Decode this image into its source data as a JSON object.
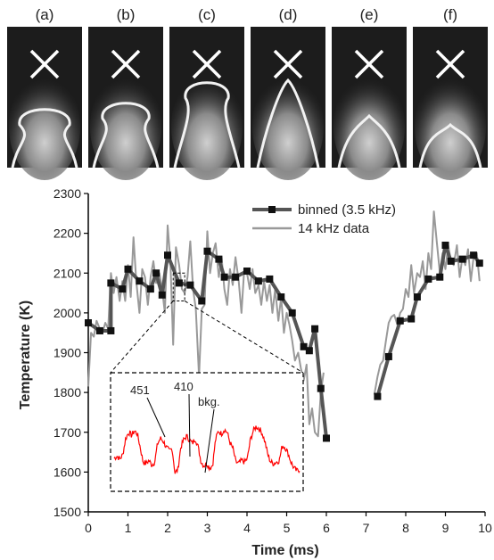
{
  "panels": {
    "labels": [
      "(a)",
      "(b)",
      "(c)",
      "(d)",
      "(e)",
      "(f)"
    ]
  },
  "chart_data": {
    "type": "line",
    "xlabel": "Time  (ms)",
    "ylabel": "Temperature  (K)",
    "xlim": [
      0,
      10
    ],
    "ylim": [
      1500,
      2300
    ],
    "xticks": [
      0,
      1,
      2,
      3,
      4,
      5,
      6,
      7,
      8,
      9,
      10
    ],
    "yticks": [
      1500,
      1600,
      1700,
      1800,
      1900,
      2000,
      2100,
      2200,
      2300
    ],
    "grid": false,
    "legend_position": "top-right",
    "series": [
      {
        "name": "binned (3.5 kHz)",
        "color": "#555555",
        "marker": "square",
        "segments": [
          [
            [
              0.0,
              1975
            ],
            [
              0.29,
              1955
            ],
            [
              0.57,
              1955
            ],
            [
              0.57,
              2075
            ],
            [
              0.86,
              2060
            ],
            [
              1.0,
              2110
            ],
            [
              1.29,
              2080
            ],
            [
              1.57,
              2060
            ],
            [
              1.71,
              2100
            ],
            [
              1.86,
              2045
            ],
            [
              2.0,
              2145
            ],
            [
              2.29,
              2075
            ],
            [
              2.57,
              2070
            ],
            [
              2.86,
              2030
            ],
            [
              3.0,
              2155
            ],
            [
              3.29,
              2135
            ],
            [
              3.43,
              2090
            ],
            [
              3.71,
              2090
            ],
            [
              4.0,
              2105
            ],
            [
              4.29,
              2080
            ],
            [
              4.57,
              2085
            ],
            [
              4.86,
              2040
            ],
            [
              5.14,
              2000
            ],
            [
              5.43,
              1915
            ],
            [
              5.57,
              1905
            ],
            [
              5.71,
              1960
            ],
            [
              5.86,
              1810
            ],
            [
              6.0,
              1685
            ]
          ],
          [
            [
              7.29,
              1790
            ],
            [
              7.57,
              1890
            ],
            [
              7.86,
              1980
            ],
            [
              8.14,
              1985
            ],
            [
              8.29,
              2040
            ],
            [
              8.57,
              2085
            ],
            [
              8.86,
              2090
            ],
            [
              9.0,
              2170
            ],
            [
              9.14,
              2130
            ],
            [
              9.43,
              2135
            ],
            [
              9.71,
              2145
            ],
            [
              9.86,
              2125
            ]
          ]
        ]
      },
      {
        "name": "14 kHz data",
        "color": "#999999",
        "marker": "none",
        "segments": [
          [
            [
              0.0,
              1815
            ],
            [
              0.07,
              1950
            ],
            [
              0.14,
              1940
            ],
            [
              0.21,
              1980
            ],
            [
              0.29,
              1960
            ],
            [
              0.36,
              1950
            ],
            [
              0.43,
              1975
            ],
            [
              0.5,
              1960
            ],
            [
              0.57,
              2100
            ],
            [
              0.64,
              2050
            ],
            [
              0.71,
              2090
            ],
            [
              0.79,
              2030
            ],
            [
              0.86,
              2080
            ],
            [
              0.93,
              2030
            ],
            [
              1.0,
              2120
            ],
            [
              1.07,
              2040
            ],
            [
              1.14,
              2190
            ],
            [
              1.21,
              2080
            ],
            [
              1.29,
              2000
            ],
            [
              1.36,
              2110
            ],
            [
              1.43,
              2090
            ],
            [
              1.5,
              2020
            ],
            [
              1.57,
              2090
            ],
            [
              1.64,
              2130
            ],
            [
              1.71,
              2075
            ],
            [
              1.79,
              2100
            ],
            [
              1.86,
              2060
            ],
            [
              1.93,
              2000
            ],
            [
              2.0,
              2220
            ],
            [
              2.07,
              2130
            ],
            [
              2.14,
              1920
            ],
            [
              2.21,
              2165
            ],
            [
              2.29,
              2120
            ],
            [
              2.36,
              2060
            ],
            [
              2.43,
              2050
            ],
            [
              2.5,
              2090
            ],
            [
              2.57,
              2180
            ],
            [
              2.64,
              2060
            ],
            [
              2.71,
              2010
            ],
            [
              2.79,
              1840
            ],
            [
              2.86,
              2010
            ],
            [
              2.93,
              2020
            ],
            [
              3.0,
              2205
            ],
            [
              3.07,
              2100
            ],
            [
              3.14,
              2150
            ],
            [
              3.21,
              2175
            ],
            [
              3.29,
              2090
            ],
            [
              3.36,
              2140
            ],
            [
              3.43,
              2060
            ],
            [
              3.5,
              2020
            ],
            [
              3.57,
              2110
            ],
            [
              3.64,
              2070
            ],
            [
              3.71,
              2140
            ],
            [
              3.79,
              2080
            ],
            [
              3.86,
              2000
            ],
            [
              3.93,
              2110
            ],
            [
              4.0,
              2100
            ],
            [
              4.07,
              2060
            ],
            [
              4.14,
              2110
            ],
            [
              4.21,
              2050
            ],
            [
              4.29,
              2070
            ],
            [
              4.36,
              2020
            ],
            [
              4.43,
              2080
            ],
            [
              4.5,
              2030
            ],
            [
              4.57,
              2070
            ],
            [
              4.64,
              2000
            ],
            [
              4.71,
              2060
            ],
            [
              4.79,
              1980
            ],
            [
              4.86,
              2040
            ],
            [
              4.93,
              1950
            ],
            [
              5.0,
              2000
            ],
            [
              5.07,
              1970
            ],
            [
              5.14,
              1930
            ],
            [
              5.21,
              1880
            ],
            [
              5.29,
              1900
            ],
            [
              5.36,
              1860
            ],
            [
              5.43,
              1830
            ],
            [
              5.5,
              1870
            ],
            [
              5.57,
              1720
            ],
            [
              5.64,
              1760
            ],
            [
              5.71,
              1700
            ],
            [
              5.79,
              1690
            ],
            [
              5.86,
              1800
            ],
            [
              5.93,
              1850
            ]
          ],
          [
            [
              7.21,
              1795
            ],
            [
              7.29,
              1840
            ],
            [
              7.36,
              1870
            ],
            [
              7.43,
              1880
            ],
            [
              7.5,
              1930
            ],
            [
              7.57,
              1975
            ],
            [
              7.64,
              1990
            ],
            [
              7.71,
              1995
            ],
            [
              7.79,
              1970
            ],
            [
              7.86,
              2000
            ],
            [
              7.93,
              2010
            ],
            [
              8.0,
              2060
            ],
            [
              8.07,
              2040
            ],
            [
              8.14,
              2120
            ],
            [
              8.21,
              2050
            ],
            [
              8.29,
              2100
            ],
            [
              8.36,
              2090
            ],
            [
              8.43,
              2130
            ],
            [
              8.5,
              2060
            ],
            [
              8.57,
              2150
            ],
            [
              8.64,
              2110
            ],
            [
              8.71,
              2255
            ],
            [
              8.79,
              2170
            ],
            [
              8.86,
              2100
            ],
            [
              8.93,
              2150
            ],
            [
              9.0,
              2110
            ],
            [
              9.07,
              2170
            ],
            [
              9.14,
              2130
            ],
            [
              9.21,
              2120
            ],
            [
              9.29,
              2170
            ],
            [
              9.36,
              2090
            ],
            [
              9.43,
              2140
            ],
            [
              9.5,
              2120
            ],
            [
              9.57,
              2160
            ],
            [
              9.64,
              2080
            ],
            [
              9.71,
              2140
            ],
            [
              9.79,
              2150
            ],
            [
              9.86,
              2080
            ]
          ]
        ]
      }
    ],
    "inset": {
      "color": "#ff0000",
      "zoom_range_ms": [
        2.14,
        2.43
      ],
      "annotations": [
        "451",
        "410",
        "bkg."
      ],
      "pattern": [
        0.35,
        0.38,
        0.34,
        0.4,
        0.62,
        0.7,
        0.66,
        0.72,
        0.68,
        0.5,
        0.3,
        0.28,
        0.32,
        0.26,
        0.3,
        0.55,
        0.62,
        0.58,
        0.5,
        0.45,
        0.48,
        0.15,
        0.2,
        0.5,
        0.6,
        0.65,
        0.6,
        0.55,
        0.62,
        0.5,
        0.3,
        0.25,
        0.28,
        0.22,
        0.26,
        0.6,
        0.72,
        0.68,
        0.74,
        0.7,
        0.56,
        0.48,
        0.3,
        0.28,
        0.32,
        0.3,
        0.35,
        0.6,
        0.72,
        0.78,
        0.75,
        0.7,
        0.58,
        0.4,
        0.3,
        0.28,
        0.3,
        0.32,
        0.52,
        0.5,
        0.42,
        0.3,
        0.22,
        0.18,
        0.2
      ]
    }
  }
}
